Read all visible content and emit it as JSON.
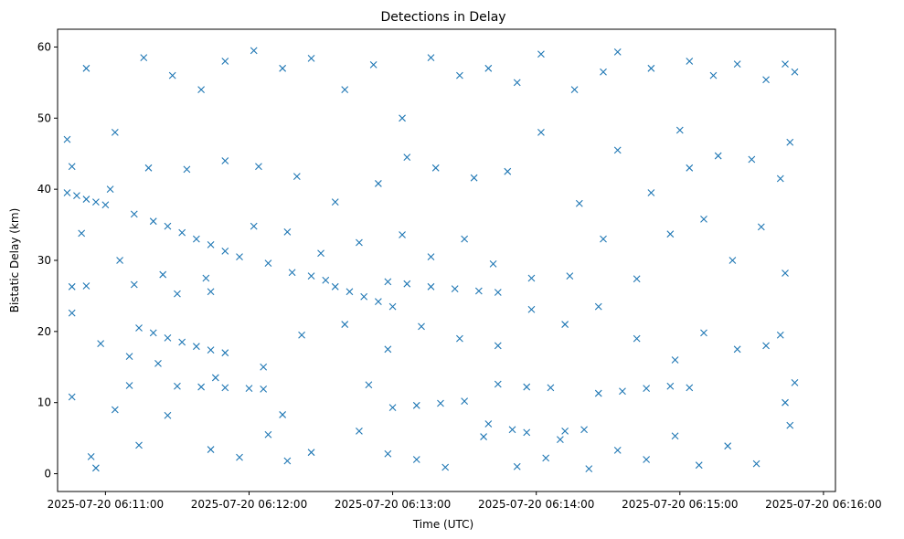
{
  "chart_data": {
    "type": "scatter",
    "title": "Detections in Delay",
    "xlabel": "Time (UTC)",
    "ylabel": "Bistatic Delay (km)",
    "x_unit": "time",
    "xlim": [
      "2025-07-20 06:10:40",
      "2025-07-20 06:16:05"
    ],
    "ylim": [
      -2.5,
      62.5
    ],
    "xticks": [
      {
        "value": "2025-07-20 06:11:00",
        "label": "2025-07-20 06:11:00"
      },
      {
        "value": "2025-07-20 06:12:00",
        "label": "2025-07-20 06:12:00"
      },
      {
        "value": "2025-07-20 06:13:00",
        "label": "2025-07-20 06:13:00"
      },
      {
        "value": "2025-07-20 06:14:00",
        "label": "2025-07-20 06:14:00"
      },
      {
        "value": "2025-07-20 06:15:00",
        "label": "2025-07-20 06:15:00"
      },
      {
        "value": "2025-07-20 06:16:00",
        "label": "2025-07-20 06:16:00"
      }
    ],
    "yticks": [
      0,
      10,
      20,
      30,
      40,
      50,
      60
    ],
    "marker": "x",
    "color": "#1f77b4",
    "grid": false,
    "series": [
      {
        "points": [
          [
            "2025-07-20 06:10:44",
            39.5
          ],
          [
            "2025-07-20 06:10:48",
            39.1
          ],
          [
            "2025-07-20 06:10:52",
            38.6
          ],
          [
            "2025-07-20 06:10:56",
            38.2
          ],
          [
            "2025-07-20 06:11:00",
            37.8
          ],
          [
            "2025-07-20 06:11:12",
            36.5
          ],
          [
            "2025-07-20 06:11:20",
            35.5
          ],
          [
            "2025-07-20 06:11:26",
            34.8
          ],
          [
            "2025-07-20 06:11:32",
            33.9
          ],
          [
            "2025-07-20 06:11:38",
            33.0
          ],
          [
            "2025-07-20 06:11:44",
            32.2
          ],
          [
            "2025-07-20 06:11:50",
            31.3
          ],
          [
            "2025-07-20 06:11:56",
            30.5
          ],
          [
            "2025-07-20 06:12:08",
            29.6
          ],
          [
            "2025-07-20 06:12:18",
            28.3
          ],
          [
            "2025-07-20 06:12:26",
            27.8
          ],
          [
            "2025-07-20 06:12:32",
            27.2
          ],
          [
            "2025-07-20 06:12:36",
            26.3
          ],
          [
            "2025-07-20 06:12:42",
            25.6
          ],
          [
            "2025-07-20 06:12:48",
            24.9
          ],
          [
            "2025-07-20 06:12:54",
            24.2
          ],
          [
            "2025-07-20 06:13:00",
            23.5
          ],
          [
            "2025-07-20 06:12:58",
            27.0
          ],
          [
            "2025-07-20 06:13:06",
            26.7
          ],
          [
            "2025-07-20 06:13:16",
            26.3
          ],
          [
            "2025-07-20 06:13:26",
            26.0
          ],
          [
            "2025-07-20 06:13:36",
            25.7
          ],
          [
            "2025-07-20 06:13:44",
            25.5
          ],
          [
            "2025-07-20 06:10:46",
            26.3
          ],
          [
            "2025-07-20 06:10:52",
            26.4
          ],
          [
            "2025-07-20 06:11:12",
            26.6
          ],
          [
            "2025-07-20 06:11:30",
            25.3
          ],
          [
            "2025-07-20 06:11:44",
            25.6
          ],
          [
            "2025-07-20 06:11:14",
            20.5
          ],
          [
            "2025-07-20 06:11:20",
            19.8
          ],
          [
            "2025-07-20 06:11:26",
            19.1
          ],
          [
            "2025-07-20 06:11:32",
            18.5
          ],
          [
            "2025-07-20 06:11:38",
            17.9
          ],
          [
            "2025-07-20 06:11:44",
            17.4
          ],
          [
            "2025-07-20 06:11:50",
            17.0
          ],
          [
            "2025-07-20 06:11:10",
            12.4
          ],
          [
            "2025-07-20 06:11:30",
            12.3
          ],
          [
            "2025-07-20 06:11:40",
            12.2
          ],
          [
            "2025-07-20 06:11:50",
            12.1
          ],
          [
            "2025-07-20 06:12:00",
            12.0
          ],
          [
            "2025-07-20 06:12:06",
            11.9
          ],
          [
            "2025-07-20 06:12:14",
            8.3
          ],
          [
            "2025-07-20 06:12:50",
            12.5
          ],
          [
            "2025-07-20 06:13:00",
            9.3
          ],
          [
            "2025-07-20 06:13:10",
            9.6
          ],
          [
            "2025-07-20 06:13:20",
            9.9
          ],
          [
            "2025-07-20 06:13:30",
            10.2
          ],
          [
            "2025-07-20 06:13:40",
            7.0
          ],
          [
            "2025-07-20 06:13:50",
            6.2
          ],
          [
            "2025-07-20 06:13:56",
            5.8
          ],
          [
            "2025-07-20 06:13:44",
            12.6
          ],
          [
            "2025-07-20 06:13:56",
            12.2
          ],
          [
            "2025-07-20 06:14:06",
            12.1
          ],
          [
            "2025-07-20 06:14:12",
            6.0
          ],
          [
            "2025-07-20 06:14:20",
            6.2
          ],
          [
            "2025-07-20 06:14:26",
            11.3
          ],
          [
            "2025-07-20 06:14:36",
            11.6
          ],
          [
            "2025-07-20 06:14:46",
            12.0
          ],
          [
            "2025-07-20 06:14:56",
            12.3
          ],
          [
            "2025-07-20 06:15:04",
            12.1
          ],
          [
            "2025-07-20 06:10:44",
            47.0
          ],
          [
            "2025-07-20 06:10:52",
            57.0
          ],
          [
            "2025-07-20 06:11:04",
            48.0
          ],
          [
            "2025-07-20 06:11:16",
            58.5
          ],
          [
            "2025-07-20 06:11:28",
            56.0
          ],
          [
            "2025-07-20 06:11:40",
            54.0
          ],
          [
            "2025-07-20 06:11:50",
            58.0
          ],
          [
            "2025-07-20 06:12:02",
            59.5
          ],
          [
            "2025-07-20 06:12:14",
            57.0
          ],
          [
            "2025-07-20 06:12:26",
            58.4
          ],
          [
            "2025-07-20 06:12:40",
            54.0
          ],
          [
            "2025-07-20 06:12:52",
            57.5
          ],
          [
            "2025-07-20 06:13:04",
            50.0
          ],
          [
            "2025-07-20 06:13:16",
            58.5
          ],
          [
            "2025-07-20 06:13:28",
            56.0
          ],
          [
            "2025-07-20 06:13:40",
            57.0
          ],
          [
            "2025-07-20 06:13:52",
            55.0
          ],
          [
            "2025-07-20 06:14:02",
            59.0
          ],
          [
            "2025-07-20 06:14:16",
            54.0
          ],
          [
            "2025-07-20 06:14:28",
            56.5
          ],
          [
            "2025-07-20 06:14:34",
            59.3
          ],
          [
            "2025-07-20 06:14:48",
            57.0
          ],
          [
            "2025-07-20 06:15:00",
            48.3
          ],
          [
            "2025-07-20 06:15:04",
            58.0
          ],
          [
            "2025-07-20 06:15:14",
            56.0
          ],
          [
            "2025-07-20 06:15:24",
            57.6
          ],
          [
            "2025-07-20 06:15:36",
            55.4
          ],
          [
            "2025-07-20 06:15:44",
            57.6
          ],
          [
            "2025-07-20 06:15:48",
            56.5
          ],
          [
            "2025-07-20 06:10:46",
            43.2
          ],
          [
            "2025-07-20 06:11:02",
            40.0
          ],
          [
            "2025-07-20 06:11:18",
            43.0
          ],
          [
            "2025-07-20 06:11:34",
            42.8
          ],
          [
            "2025-07-20 06:11:50",
            44.0
          ],
          [
            "2025-07-20 06:12:04",
            43.2
          ],
          [
            "2025-07-20 06:12:20",
            41.8
          ],
          [
            "2025-07-20 06:12:36",
            38.2
          ],
          [
            "2025-07-20 06:12:54",
            40.8
          ],
          [
            "2025-07-20 06:13:06",
            44.5
          ],
          [
            "2025-07-20 06:13:18",
            43.0
          ],
          [
            "2025-07-20 06:13:34",
            41.6
          ],
          [
            "2025-07-20 06:13:48",
            42.5
          ],
          [
            "2025-07-20 06:14:02",
            48.0
          ],
          [
            "2025-07-20 06:14:18",
            38.0
          ],
          [
            "2025-07-20 06:14:34",
            45.5
          ],
          [
            "2025-07-20 06:14:48",
            39.5
          ],
          [
            "2025-07-20 06:15:04",
            43.0
          ],
          [
            "2025-07-20 06:15:16",
            44.7
          ],
          [
            "2025-07-20 06:15:30",
            44.2
          ],
          [
            "2025-07-20 06:15:42",
            41.5
          ],
          [
            "2025-07-20 06:15:46",
            46.6
          ],
          [
            "2025-07-20 06:10:50",
            33.8
          ],
          [
            "2025-07-20 06:11:06",
            30.0
          ],
          [
            "2025-07-20 06:11:24",
            28.0
          ],
          [
            "2025-07-20 06:11:42",
            27.5
          ],
          [
            "2025-07-20 06:12:02",
            34.8
          ],
          [
            "2025-07-20 06:12:16",
            34.0
          ],
          [
            "2025-07-20 06:12:30",
            31.0
          ],
          [
            "2025-07-20 06:12:46",
            32.5
          ],
          [
            "2025-07-20 06:13:04",
            33.6
          ],
          [
            "2025-07-20 06:13:16",
            30.5
          ],
          [
            "2025-07-20 06:13:30",
            33.0
          ],
          [
            "2025-07-20 06:13:42",
            29.5
          ],
          [
            "2025-07-20 06:13:58",
            27.5
          ],
          [
            "2025-07-20 06:14:14",
            27.8
          ],
          [
            "2025-07-20 06:14:28",
            33.0
          ],
          [
            "2025-07-20 06:14:42",
            27.4
          ],
          [
            "2025-07-20 06:14:56",
            33.7
          ],
          [
            "2025-07-20 06:15:10",
            35.8
          ],
          [
            "2025-07-20 06:15:22",
            30.0
          ],
          [
            "2025-07-20 06:15:34",
            34.7
          ],
          [
            "2025-07-20 06:15:44",
            28.2
          ],
          [
            "2025-07-20 06:10:46",
            22.6
          ],
          [
            "2025-07-20 06:10:58",
            18.3
          ],
          [
            "2025-07-20 06:11:10",
            16.5
          ],
          [
            "2025-07-20 06:11:22",
            15.5
          ],
          [
            "2025-07-20 06:11:46",
            13.5
          ],
          [
            "2025-07-20 06:12:06",
            15.0
          ],
          [
            "2025-07-20 06:12:22",
            19.5
          ],
          [
            "2025-07-20 06:12:40",
            21.0
          ],
          [
            "2025-07-20 06:12:58",
            17.5
          ],
          [
            "2025-07-20 06:13:12",
            20.7
          ],
          [
            "2025-07-20 06:13:28",
            19.0
          ],
          [
            "2025-07-20 06:13:44",
            18.0
          ],
          [
            "2025-07-20 06:13:58",
            23.1
          ],
          [
            "2025-07-20 06:14:12",
            21.0
          ],
          [
            "2025-07-20 06:14:26",
            23.5
          ],
          [
            "2025-07-20 06:14:42",
            19.0
          ],
          [
            "2025-07-20 06:14:58",
            16.0
          ],
          [
            "2025-07-20 06:15:10",
            19.8
          ],
          [
            "2025-07-20 06:15:24",
            17.5
          ],
          [
            "2025-07-20 06:15:36",
            18.0
          ],
          [
            "2025-07-20 06:15:42",
            19.5
          ],
          [
            "2025-07-20 06:10:46",
            10.8
          ],
          [
            "2025-07-20 06:10:54",
            2.4
          ],
          [
            "2025-07-20 06:10:56",
            0.8
          ],
          [
            "2025-07-20 06:11:04",
            9.0
          ],
          [
            "2025-07-20 06:11:14",
            4.0
          ],
          [
            "2025-07-20 06:11:26",
            8.2
          ],
          [
            "2025-07-20 06:11:44",
            3.4
          ],
          [
            "2025-07-20 06:11:56",
            2.3
          ],
          [
            "2025-07-20 06:12:08",
            5.5
          ],
          [
            "2025-07-20 06:12:16",
            1.8
          ],
          [
            "2025-07-20 06:12:26",
            3.0
          ],
          [
            "2025-07-20 06:12:46",
            6.0
          ],
          [
            "2025-07-20 06:12:58",
            2.8
          ],
          [
            "2025-07-20 06:13:10",
            2.0
          ],
          [
            "2025-07-20 06:13:22",
            0.9
          ],
          [
            "2025-07-20 06:13:38",
            5.2
          ],
          [
            "2025-07-20 06:13:52",
            1.0
          ],
          [
            "2025-07-20 06:14:04",
            2.2
          ],
          [
            "2025-07-20 06:14:10",
            4.8
          ],
          [
            "2025-07-20 06:14:22",
            0.7
          ],
          [
            "2025-07-20 06:14:34",
            3.3
          ],
          [
            "2025-07-20 06:14:46",
            2.0
          ],
          [
            "2025-07-20 06:14:58",
            5.3
          ],
          [
            "2025-07-20 06:15:08",
            1.2
          ],
          [
            "2025-07-20 06:15:20",
            3.9
          ],
          [
            "2025-07-20 06:15:32",
            1.4
          ],
          [
            "2025-07-20 06:15:46",
            6.8
          ],
          [
            "2025-07-20 06:15:44",
            10.0
          ],
          [
            "2025-07-20 06:15:48",
            12.8
          ]
        ]
      }
    ]
  }
}
